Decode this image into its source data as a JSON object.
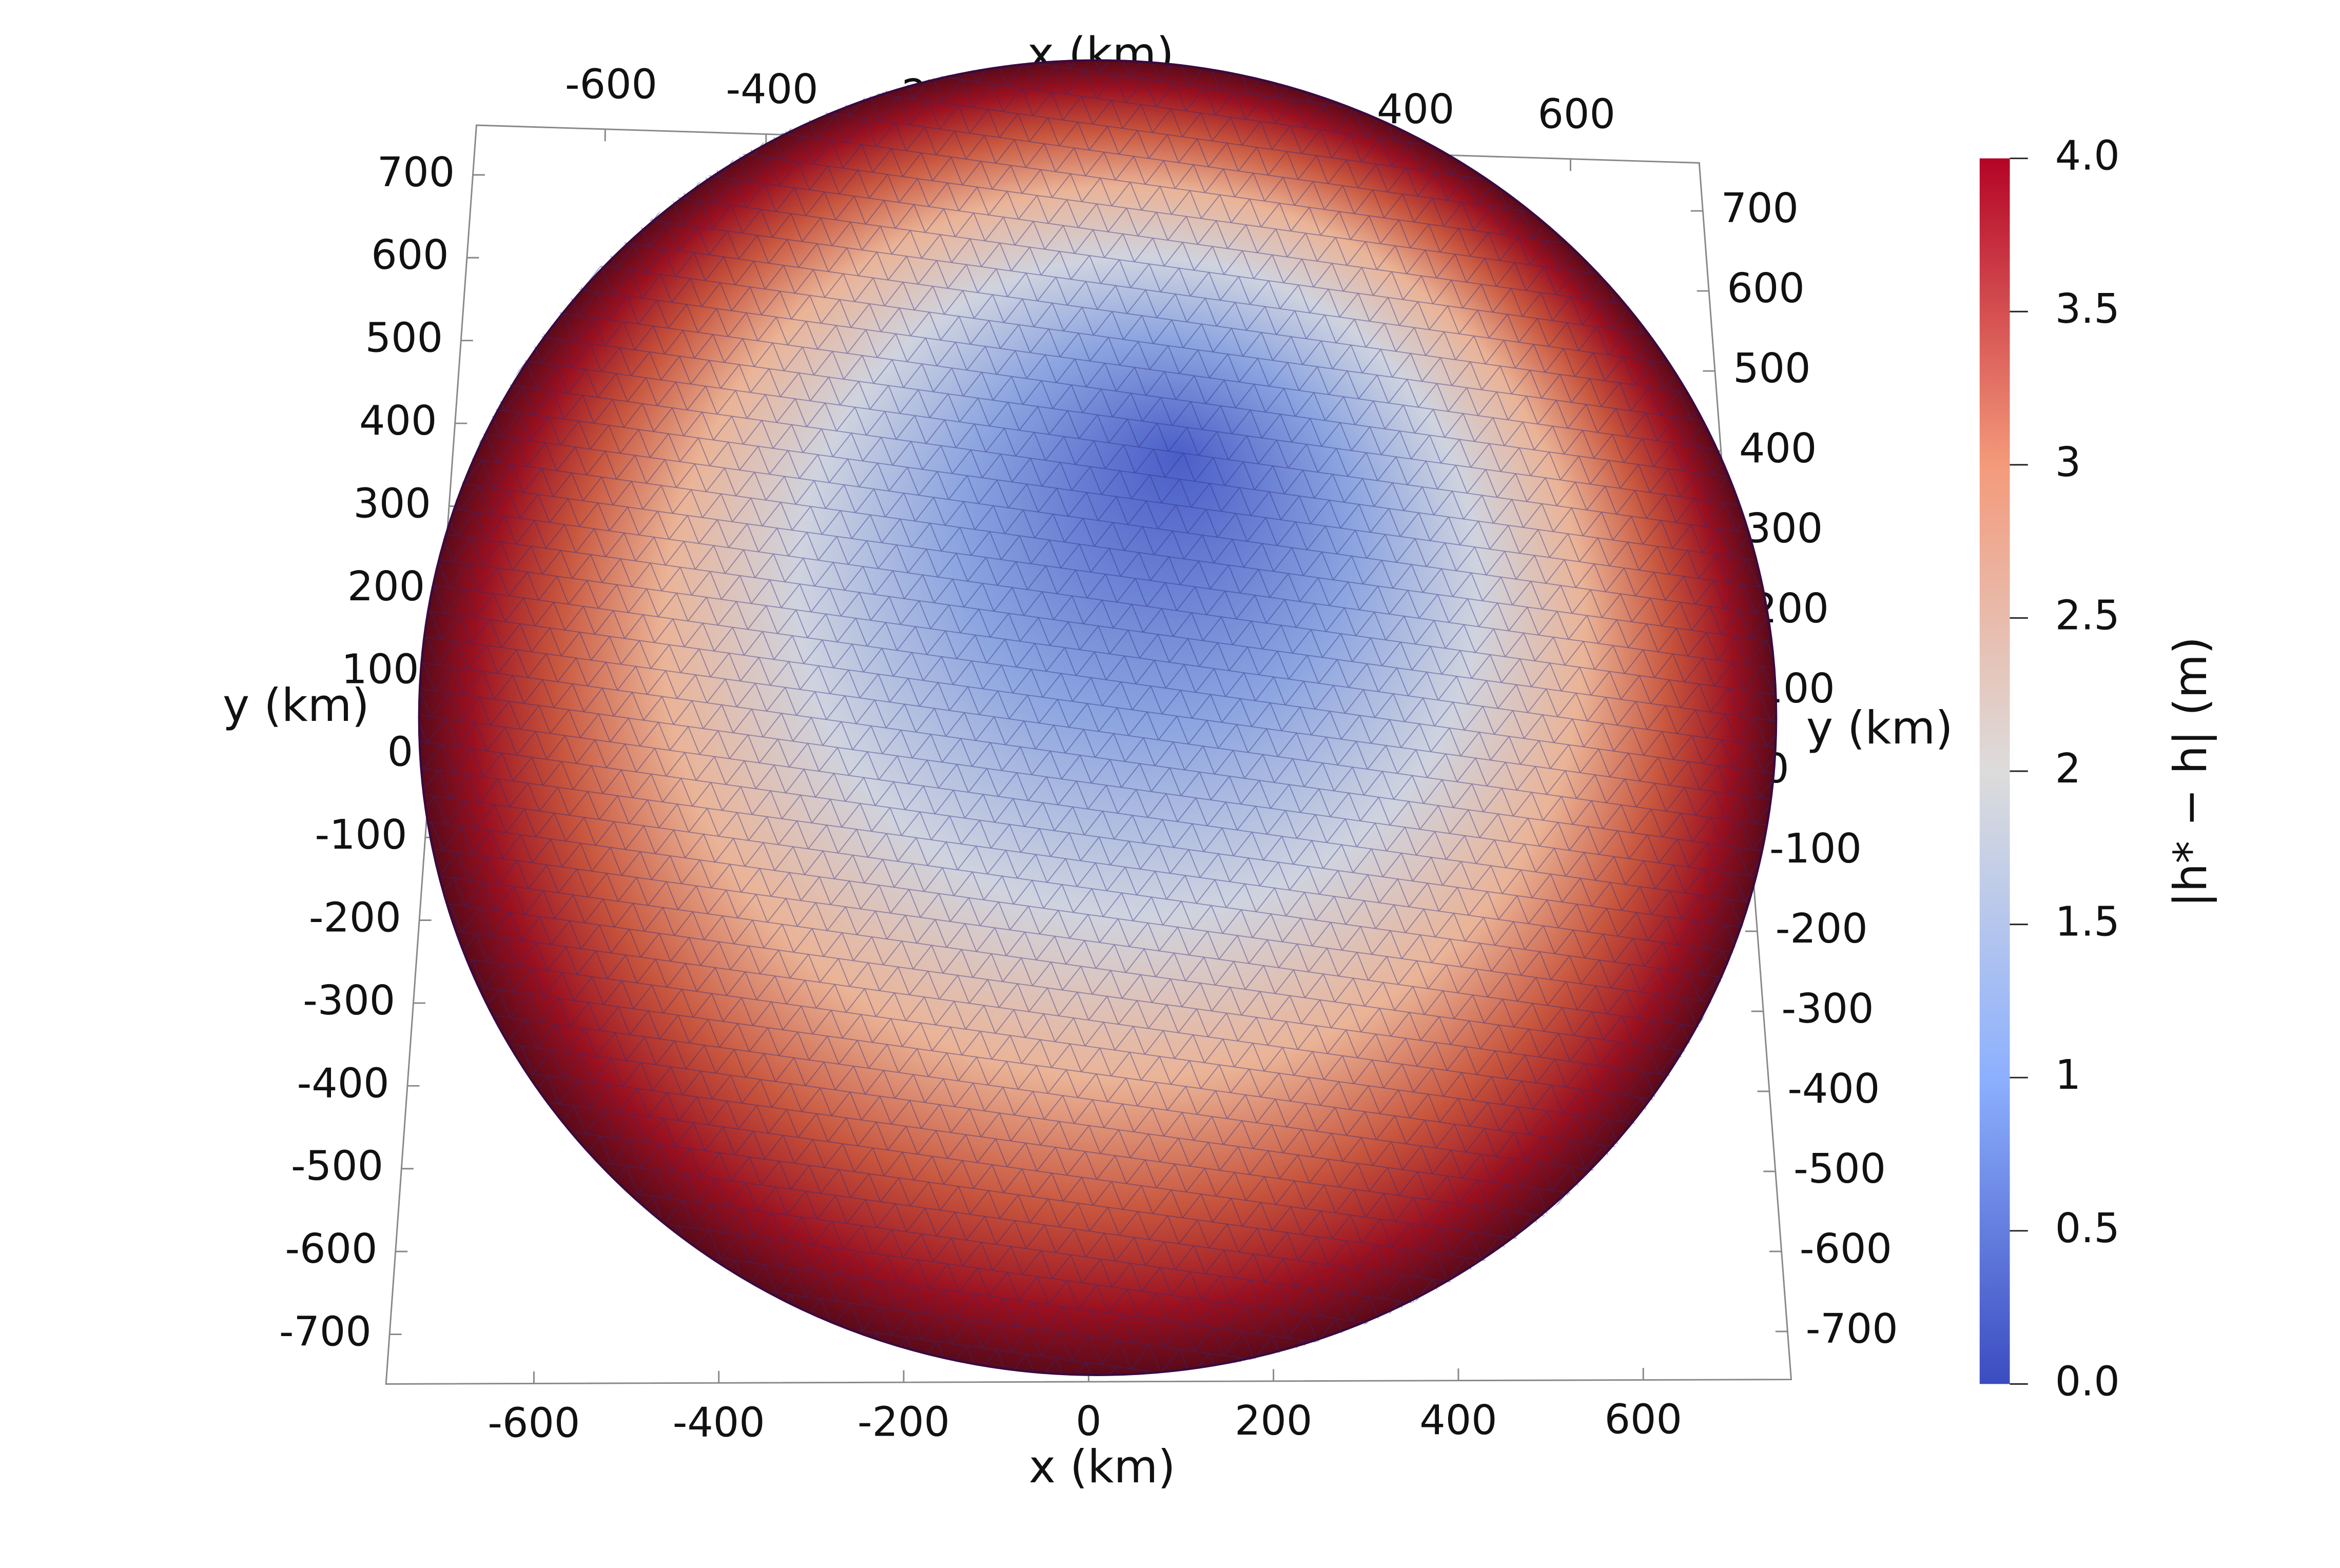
{
  "chart_data": {
    "type": "surface",
    "x_label": "x (km)",
    "y_label": "y (km)",
    "colorbar_label": "|h* − h| (m)",
    "xlim": [
      -760,
      760
    ],
    "ylim": [
      -760,
      760
    ],
    "xticks": [
      -600,
      -400,
      -200,
      0,
      200,
      400,
      600
    ],
    "yticks": [
      700,
      600,
      500,
      400,
      300,
      200,
      100,
      0,
      -100,
      -200,
      -300,
      -400,
      -500,
      -600,
      -700
    ],
    "clim": [
      0,
      4
    ],
    "cticks": [
      {
        "value": 0,
        "label": "0.0"
      },
      0.5,
      1,
      1.5,
      2,
      2.5,
      3,
      3.5,
      {
        "value": 4,
        "label": "4.0"
      }
    ],
    "colors": [
      "#3b4cc0",
      "#8db0fe",
      "#dddcdc",
      "#f49a7b",
      "#b40426"
    ]
  }
}
